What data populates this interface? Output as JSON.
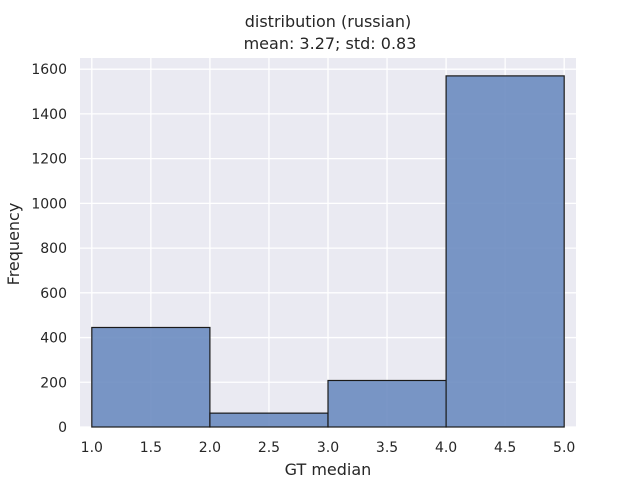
{
  "chart_data": {
    "type": "bar",
    "title": "distribution (russian)",
    "subtitle": "mean: 3.27; std: 0.83",
    "xlabel": "GT median",
    "ylabel": "Frequency",
    "bins": [
      {
        "start": 1.0,
        "end": 2.0,
        "value": 445
      },
      {
        "start": 2.0,
        "end": 3.0,
        "value": 62
      },
      {
        "start": 3.0,
        "end": 4.0,
        "value": 208
      },
      {
        "start": 4.0,
        "end": 5.0,
        "value": 1570
      }
    ],
    "xlim": [
      0.9,
      5.1
    ],
    "ylim": [
      0,
      1650
    ],
    "xticks": [
      "1.0",
      "1.5",
      "2.0",
      "2.5",
      "3.0",
      "3.5",
      "4.0",
      "4.5",
      "5.0"
    ],
    "yticks": [
      "0",
      "200",
      "400",
      "600",
      "800",
      "1000",
      "1200",
      "1400",
      "1600"
    ],
    "grid": true,
    "colors": {
      "background": "#eaeaf2",
      "bar_fill": "#6c8cc0",
      "bar_edge": "#1a1a1a",
      "grid": "#ffffff",
      "text": "#262626"
    }
  }
}
